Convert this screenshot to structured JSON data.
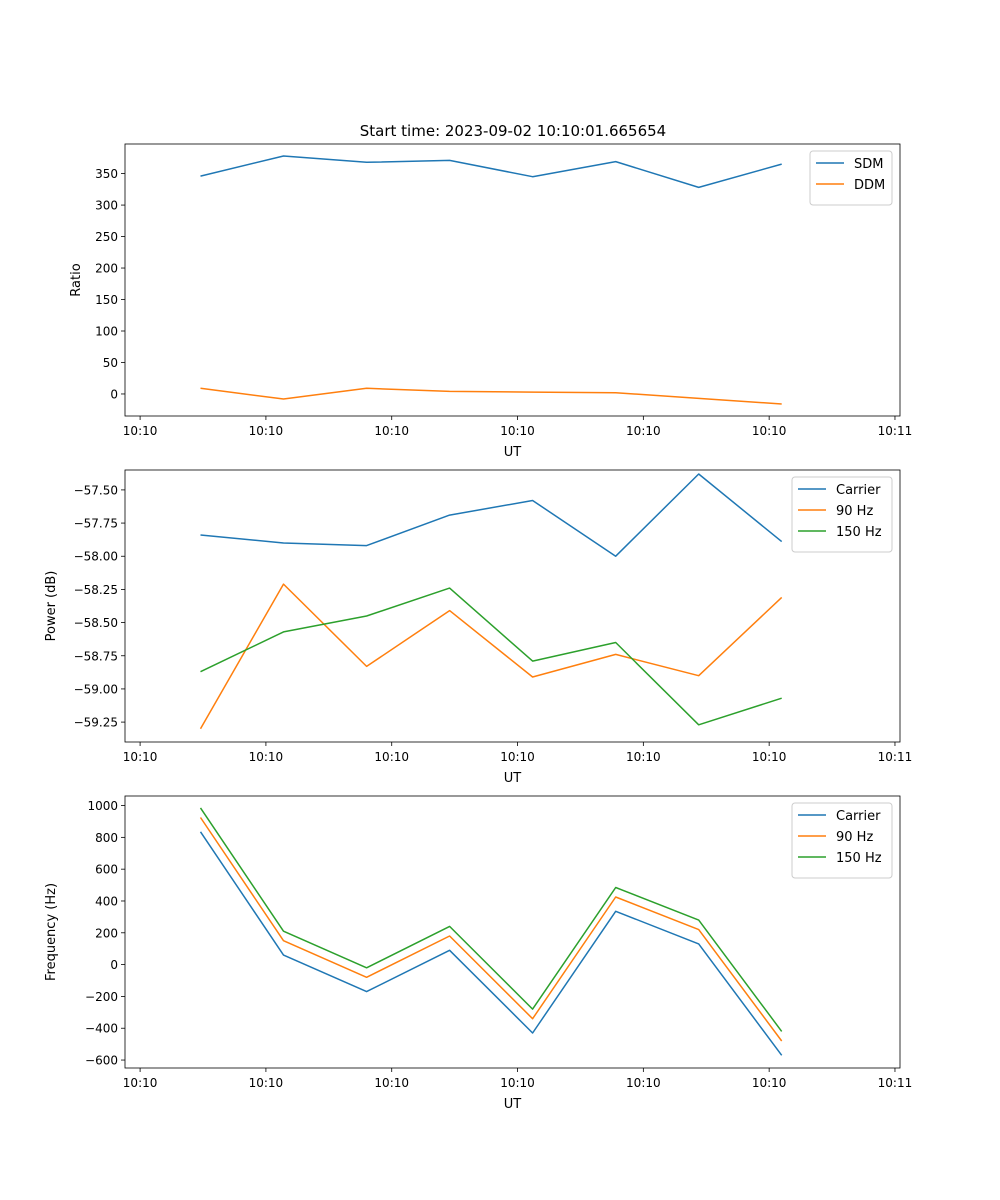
{
  "figure": {
    "title": "Start time: 2023-09-02 10:10:01.665654"
  },
  "colors": {
    "series1": "#1f77b4",
    "series2": "#ff7f0e",
    "series3": "#2ca02c",
    "axis": "#000000",
    "background": "#ffffff"
  },
  "chart_data": [
    {
      "type": "line",
      "xlabel": "UT",
      "ylabel": "Ratio",
      "x_tick_labels": [
        "10:10",
        "10:10",
        "10:10",
        "10:10",
        "10:10",
        "10:10",
        "10:11"
      ],
      "x_tick_values": [
        0,
        0.25,
        0.5,
        0.75,
        1.0,
        1.25,
        1.5
      ],
      "xlim": [
        -0.03,
        1.51
      ],
      "x": [
        0.12,
        0.285,
        0.45,
        0.615,
        0.78,
        0.945,
        1.11,
        1.275
      ],
      "ylim": [
        -35,
        397
      ],
      "y_ticks": [
        0,
        50,
        100,
        150,
        200,
        250,
        300,
        350
      ],
      "legend_position": "upper right",
      "series": [
        {
          "name": "SDM",
          "color": "#1f77b4",
          "values": [
            346,
            378,
            368,
            371,
            345,
            369,
            328,
            365
          ]
        },
        {
          "name": "DDM",
          "color": "#ff7f0e",
          "values": [
            9,
            -8,
            9,
            4,
            3,
            2,
            -7,
            -16
          ]
        }
      ]
    },
    {
      "type": "line",
      "xlabel": "UT",
      "ylabel": "Power (dB)",
      "x_tick_labels": [
        "10:10",
        "10:10",
        "10:10",
        "10:10",
        "10:10",
        "10:10",
        "10:11"
      ],
      "x_tick_values": [
        0,
        0.25,
        0.5,
        0.75,
        1.0,
        1.25,
        1.5
      ],
      "xlim": [
        -0.03,
        1.51
      ],
      "x": [
        0.12,
        0.285,
        0.45,
        0.615,
        0.78,
        0.945,
        1.11,
        1.275
      ],
      "ylim": [
        -59.4,
        -57.35
      ],
      "y_ticks": [
        -59.25,
        -59.0,
        -58.75,
        -58.5,
        -58.25,
        -58.0,
        -57.75,
        -57.5
      ],
      "y_tick_labels": [
        "−59.25",
        "−59.00",
        "−58.75",
        "−58.50",
        "−58.25",
        "−58.00",
        "−57.75",
        "−57.50"
      ],
      "legend_position": "upper right",
      "series": [
        {
          "name": "Carrier",
          "color": "#1f77b4",
          "values": [
            -57.84,
            -57.9,
            -57.92,
            -57.69,
            -57.58,
            -58.0,
            -57.38,
            -57.89
          ]
        },
        {
          "name": "90 Hz",
          "color": "#ff7f0e",
          "values": [
            -59.3,
            -58.21,
            -58.83,
            -58.41,
            -58.91,
            -58.74,
            -58.9,
            -58.31
          ]
        },
        {
          "name": "150 Hz",
          "color": "#2ca02c",
          "values": [
            -58.87,
            -58.57,
            -58.45,
            -58.24,
            -58.79,
            -58.65,
            -59.27,
            -59.07
          ]
        }
      ]
    },
    {
      "type": "line",
      "xlabel": "UT",
      "ylabel": "Frequency (Hz)",
      "x_tick_labels": [
        "10:10",
        "10:10",
        "10:10",
        "10:10",
        "10:10",
        "10:10",
        "10:11"
      ],
      "x_tick_values": [
        0,
        0.25,
        0.5,
        0.75,
        1.0,
        1.25,
        1.5
      ],
      "xlim": [
        -0.03,
        1.51
      ],
      "x": [
        0.12,
        0.285,
        0.45,
        0.615,
        0.78,
        0.945,
        1.11,
        1.275
      ],
      "ylim": [
        -650,
        1060
      ],
      "y_ticks": [
        -600,
        -400,
        -200,
        0,
        200,
        400,
        600,
        800,
        1000
      ],
      "y_tick_labels": [
        "−600",
        "−400",
        "−200",
        "0",
        "200",
        "400",
        "600",
        "800",
        "1000"
      ],
      "legend_position": "upper right",
      "series": [
        {
          "name": "Carrier",
          "color": "#1f77b4",
          "values": [
            835,
            60,
            -170,
            90,
            -430,
            335,
            130,
            -570
          ]
        },
        {
          "name": "90 Hz",
          "color": "#ff7f0e",
          "values": [
            925,
            150,
            -80,
            180,
            -340,
            425,
            220,
            -480
          ]
        },
        {
          "name": "150 Hz",
          "color": "#2ca02c",
          "values": [
            985,
            210,
            -20,
            240,
            -280,
            485,
            280,
            -420
          ]
        }
      ]
    }
  ]
}
